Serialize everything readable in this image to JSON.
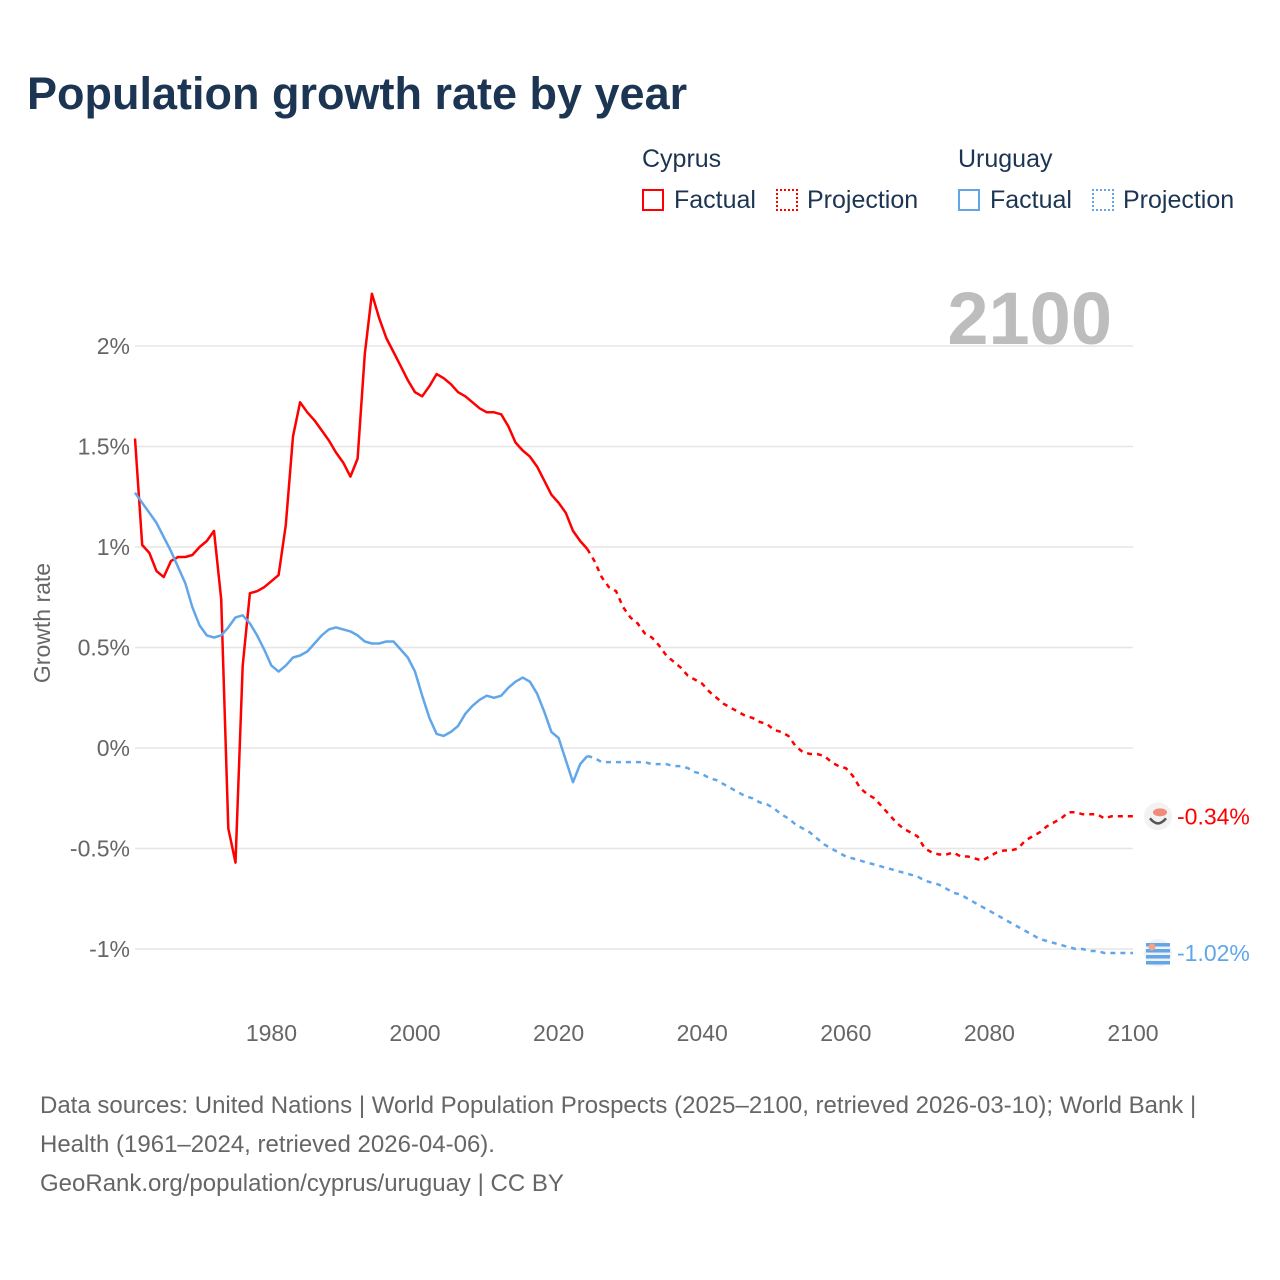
{
  "title": "Population growth rate by year",
  "legend": {
    "groups": [
      {
        "name": "Cyprus",
        "factual": "Factual",
        "projection": "Projection",
        "color": "#ff0000"
      },
      {
        "name": "Uruguay",
        "factual": "Factual",
        "projection": "Projection",
        "color": "#62a6ea"
      }
    ]
  },
  "year_watermark": "2100",
  "footer": {
    "line1": "Data sources: United Nations | World Population Prospects (2025–2100, retrieved 2026-03-10); World Bank | Health (1961–2024, retrieved 2026-04-06).",
    "line2": "GeoRank.org/population/cyprus/uruguay | CC BY"
  },
  "chart_data": {
    "type": "line",
    "title": "Population growth rate by year",
    "xlabel": "",
    "ylabel": "Growth rate",
    "xlim": [
      1961,
      2100
    ],
    "ylim": [
      -1.2,
      2.3
    ],
    "xticks": [
      1980,
      2000,
      2020,
      2040,
      2060,
      2080,
      2100
    ],
    "xtick_labels": [
      "1980",
      "2000",
      "2020",
      "2040",
      "2060",
      "2080",
      "2100"
    ],
    "yticks": [
      2,
      1.5,
      1,
      0.5,
      0,
      -0.5,
      -1
    ],
    "ytick_labels": [
      "2%",
      "1.5%",
      "1%",
      "0.5%",
      "0%",
      "-0.5%",
      "-1%"
    ],
    "grid": true,
    "series": [
      {
        "name": "Cyprus",
        "color": "#ff0000",
        "end_label": "-0.34%",
        "factual_start_year": 1961,
        "factual": [
          1.54,
          1.01,
          0.97,
          0.88,
          0.85,
          0.93,
          0.95,
          0.95,
          0.96,
          1.0,
          1.03,
          1.08,
          0.74,
          -0.4,
          -0.57,
          0.41,
          0.77,
          0.78,
          0.8,
          0.83,
          0.86,
          1.11,
          1.55,
          1.72,
          1.67,
          1.63,
          1.58,
          1.53,
          1.47,
          1.42,
          1.35,
          1.44,
          1.96,
          2.26,
          2.14,
          2.04,
          1.97,
          1.9,
          1.83,
          1.77,
          1.75,
          1.8,
          1.86,
          1.84,
          1.81,
          1.77,
          1.75,
          1.72,
          1.69,
          1.67,
          1.67,
          1.66,
          1.6,
          1.52,
          1.48,
          1.45,
          1.4,
          1.33,
          1.26,
          1.22,
          1.17,
          1.08,
          1.03,
          0.99
        ],
        "projection_start_year": 2024,
        "projection": [
          0.99,
          0.93,
          0.85,
          0.8,
          0.78,
          0.7,
          0.65,
          0.62,
          0.57,
          0.55,
          0.51,
          0.46,
          0.43,
          0.4,
          0.36,
          0.34,
          0.32,
          0.28,
          0.25,
          0.22,
          0.2,
          0.18,
          0.16,
          0.15,
          0.13,
          0.12,
          0.09,
          0.08,
          0.06,
          0.01,
          -0.02,
          -0.03,
          -0.03,
          -0.04,
          -0.07,
          -0.09,
          -0.1,
          -0.14,
          -0.2,
          -0.23,
          -0.25,
          -0.29,
          -0.33,
          -0.37,
          -0.4,
          -0.42,
          -0.44,
          -0.5,
          -0.52,
          -0.53,
          -0.53,
          -0.52,
          -0.54,
          -0.54,
          -0.55,
          -0.56,
          -0.54,
          -0.52,
          -0.51,
          -0.51,
          -0.5,
          -0.46,
          -0.44,
          -0.42,
          -0.39,
          -0.37,
          -0.35,
          -0.32,
          -0.32,
          -0.33,
          -0.33,
          -0.33,
          -0.35,
          -0.34,
          -0.34,
          -0.34,
          -0.34
        ]
      },
      {
        "name": "Uruguay",
        "color": "#62a6ea",
        "end_label": "-1.02%",
        "factual_start_year": 1961,
        "factual": [
          1.27,
          1.22,
          1.17,
          1.12,
          1.05,
          0.98,
          0.9,
          0.82,
          0.7,
          0.61,
          0.56,
          0.55,
          0.56,
          0.6,
          0.65,
          0.66,
          0.62,
          0.56,
          0.49,
          0.41,
          0.38,
          0.41,
          0.45,
          0.46,
          0.48,
          0.52,
          0.56,
          0.59,
          0.6,
          0.59,
          0.58,
          0.56,
          0.53,
          0.52,
          0.52,
          0.53,
          0.53,
          0.49,
          0.45,
          0.38,
          0.26,
          0.15,
          0.07,
          0.06,
          0.08,
          0.11,
          0.17,
          0.21,
          0.24,
          0.26,
          0.25,
          0.26,
          0.3,
          0.33,
          0.35,
          0.33,
          0.27,
          0.18,
          0.08,
          0.05,
          -0.06,
          -0.17,
          -0.08,
          -0.04
        ],
        "projection_start_year": 2024,
        "projection": [
          -0.04,
          -0.05,
          -0.07,
          -0.07,
          -0.07,
          -0.07,
          -0.07,
          -0.07,
          -0.07,
          -0.08,
          -0.08,
          -0.08,
          -0.09,
          -0.09,
          -0.1,
          -0.12,
          -0.13,
          -0.15,
          -0.16,
          -0.18,
          -0.2,
          -0.22,
          -0.24,
          -0.25,
          -0.27,
          -0.28,
          -0.3,
          -0.33,
          -0.35,
          -0.38,
          -0.4,
          -0.42,
          -0.45,
          -0.48,
          -0.5,
          -0.52,
          -0.54,
          -0.55,
          -0.56,
          -0.57,
          -0.58,
          -0.59,
          -0.6,
          -0.61,
          -0.62,
          -0.63,
          -0.64,
          -0.66,
          -0.67,
          -0.68,
          -0.7,
          -0.72,
          -0.73,
          -0.75,
          -0.77,
          -0.79,
          -0.81,
          -0.83,
          -0.85,
          -0.87,
          -0.89,
          -0.91,
          -0.93,
          -0.95,
          -0.96,
          -0.97,
          -0.98,
          -0.99,
          -1.0,
          -1.0,
          -1.01,
          -1.01,
          -1.02,
          -1.02,
          -1.02,
          -1.02,
          -1.02
        ]
      }
    ]
  }
}
